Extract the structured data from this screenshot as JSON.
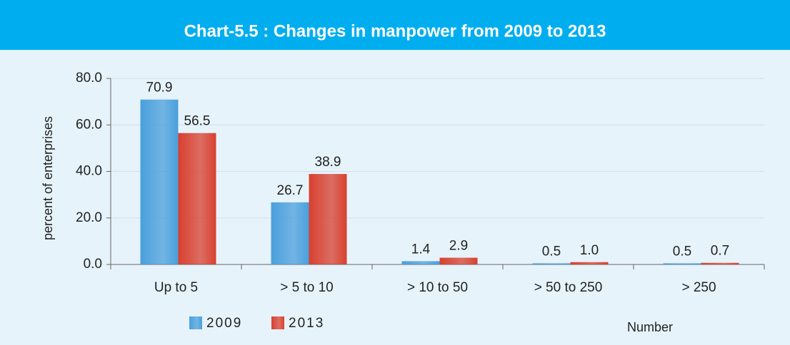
{
  "chart_data": {
    "type": "bar",
    "title": "Chart-5.5 : Changes in manpower from 2009 to 2013",
    "y_label": "percent of enterprises",
    "x_label": "Number",
    "categories": [
      "Up to 5",
      "> 5 to 10",
      "> 10 to 50",
      "> 50 to 250",
      "> 250"
    ],
    "series": [
      {
        "name": "2009",
        "color": "#4a9fdc",
        "values": [
          70.9,
          26.7,
          1.4,
          0.5,
          0.5
        ],
        "value_labels": [
          "70.9",
          "26.7",
          "1.4",
          "0.5",
          "0.5"
        ]
      },
      {
        "name": "2013",
        "color": "#d8402f",
        "values": [
          56.5,
          38.9,
          2.9,
          1.0,
          0.7
        ],
        "value_labels": [
          "56.5",
          "38.9",
          "2.9",
          "1.0",
          "0.7"
        ]
      }
    ],
    "ylim": [
      0,
      80
    ],
    "yticks": [
      {
        "value": 0,
        "label": "0.0"
      },
      {
        "value": 20,
        "label": "20.0"
      },
      {
        "value": 40,
        "label": "40.0"
      },
      {
        "value": 60,
        "label": "60.0"
      },
      {
        "value": 80,
        "label": "80.0"
      }
    ],
    "grid": true,
    "legend": "bottom-left"
  }
}
